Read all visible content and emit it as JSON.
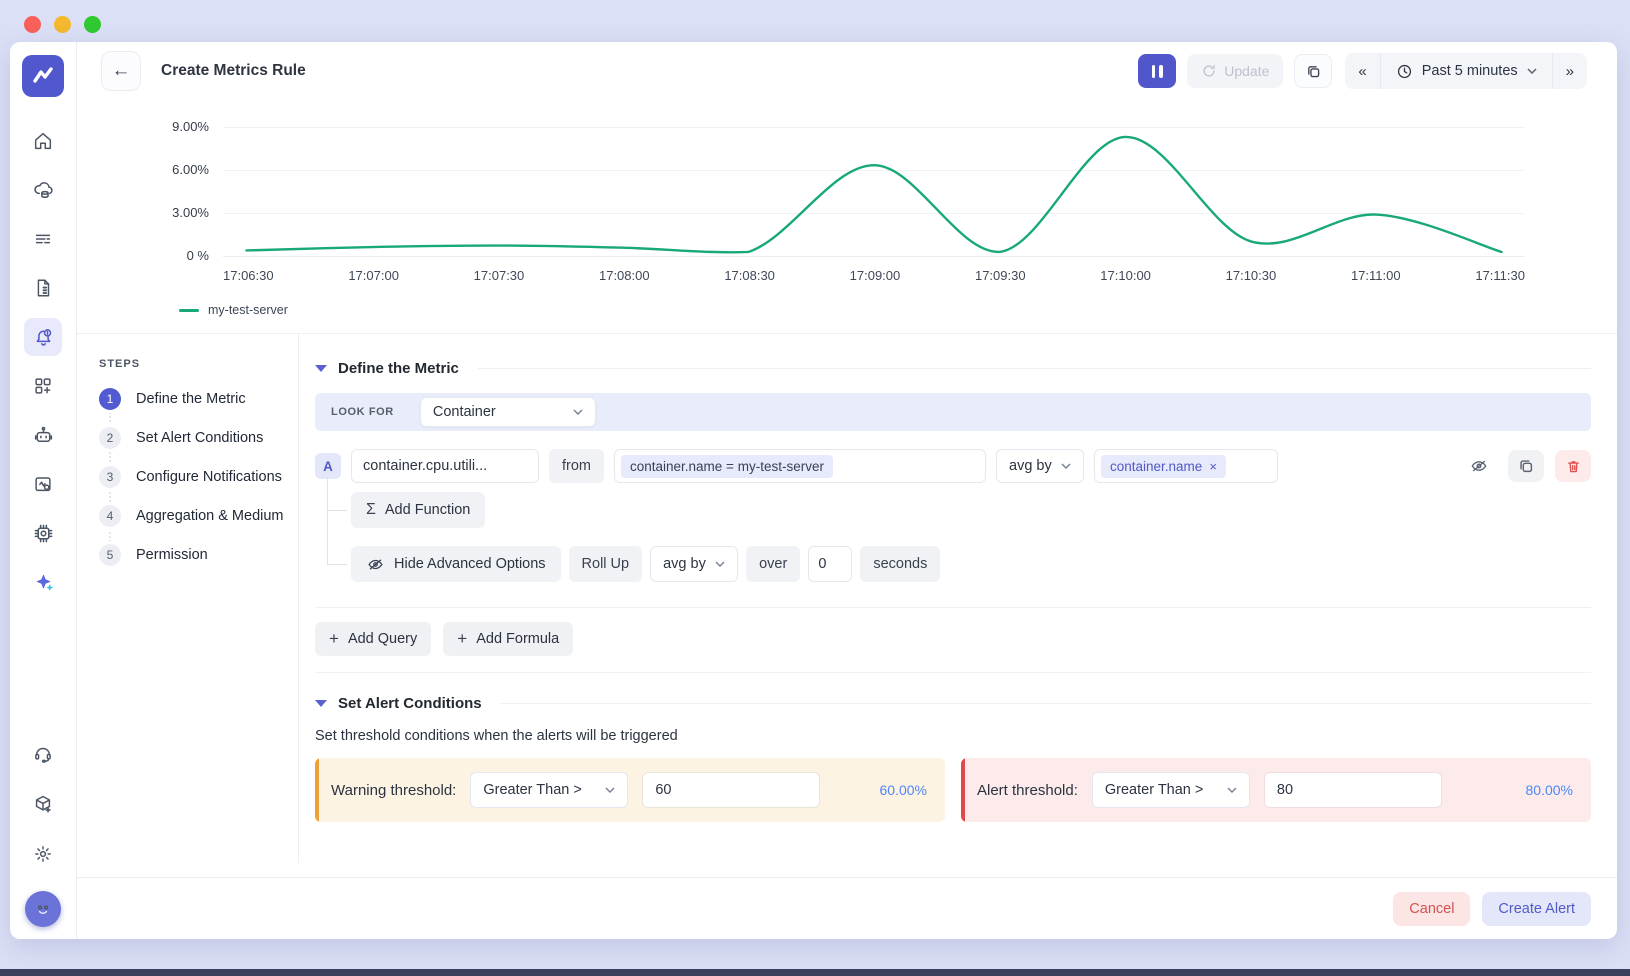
{
  "window": {
    "traffic_colors": {
      "close": "#f9605a",
      "minimize": "#f4b92e",
      "zoom": "#2fc932"
    }
  },
  "header": {
    "back_icon": "←",
    "title": "Create Metrics Rule",
    "update_label": "Update",
    "prev_range_icon": "«",
    "time_range": "Past 5 minutes",
    "next_range_icon": "»"
  },
  "chart_data": {
    "type": "line",
    "x": [
      "17:06:30",
      "17:07:00",
      "17:07:30",
      "17:08:00",
      "17:08:30",
      "17:09:00",
      "17:09:30",
      "17:10:00",
      "17:10:30",
      "17:11:00",
      "17:11:30"
    ],
    "series": [
      {
        "name": "my-test-server",
        "color": "#19a878",
        "values": [
          0.25,
          0.5,
          0.6,
          0.45,
          0.15,
          6.3,
          0.15,
          8.3,
          0.9,
          2.8,
          0.15
        ]
      }
    ],
    "ylabel": "",
    "xlabel": "",
    "y_ticks": [
      "9.00%",
      "6.00%",
      "3.00%",
      "0 %"
    ],
    "y_tick_values": [
      9,
      6,
      3,
      0
    ],
    "ylim": [
      0,
      10.5
    ],
    "grid": true,
    "legend_position": "bottom-left"
  },
  "sidebar": {
    "items": [
      "home",
      "infrastructure",
      "logs",
      "reports",
      "alerts",
      "dashboard-builder",
      "bot",
      "rum",
      "processes",
      "ai-assist"
    ],
    "active_item": "alerts",
    "bottom_items": [
      "support",
      "integrations",
      "settings"
    ]
  },
  "steps": {
    "heading": "STEPS",
    "items": [
      {
        "num": "1",
        "label": "Define the Metric",
        "active": true
      },
      {
        "num": "2",
        "label": "Set Alert Conditions",
        "active": false
      },
      {
        "num": "3",
        "label": "Configure Notifications",
        "active": false
      },
      {
        "num": "4",
        "label": "Aggregation & Medium",
        "active": false
      },
      {
        "num": "5",
        "label": "Permission",
        "active": false
      }
    ]
  },
  "define_metric": {
    "section_title": "Define the Metric",
    "look_for_label": "LOOK FOR",
    "look_for_value": "Container",
    "query": {
      "letter": "A",
      "metric": "container.cpu.utili...",
      "from_label": "from",
      "filter_chip": "container.name = my-test-server",
      "agg_value": "avg by",
      "group_chip": "container.name",
      "chip_remove_icon": "×"
    },
    "add_function_label": "Add Function",
    "sigma_icon": "Σ",
    "advanced": {
      "hide_label": "Hide Advanced Options",
      "rollup_label": "Roll Up",
      "agg_value": "avg by",
      "over_label": "over",
      "value": "0",
      "unit_label": "seconds"
    },
    "add_query_label": "Add Query",
    "add_formula_label": "Add Formula",
    "plus_icon": "+"
  },
  "alert_conditions": {
    "section_title": "Set Alert Conditions",
    "description": "Set threshold conditions when the alerts will be triggered",
    "warning": {
      "label": "Warning threshold:",
      "operator": "Greater Than >",
      "value": "60",
      "percent": "60.00%"
    },
    "alert": {
      "label": "Alert threshold:",
      "operator": "Greater Than >",
      "value": "80",
      "percent": "80.00%"
    }
  },
  "footer": {
    "cancel_label": "Cancel",
    "create_label": "Create Alert"
  },
  "colors": {
    "accent": "#5158ce",
    "line": "#19a878",
    "warning_bar": "#eda13c",
    "alert_bar": "#e0484a",
    "percent_text": "#4f86f7"
  }
}
